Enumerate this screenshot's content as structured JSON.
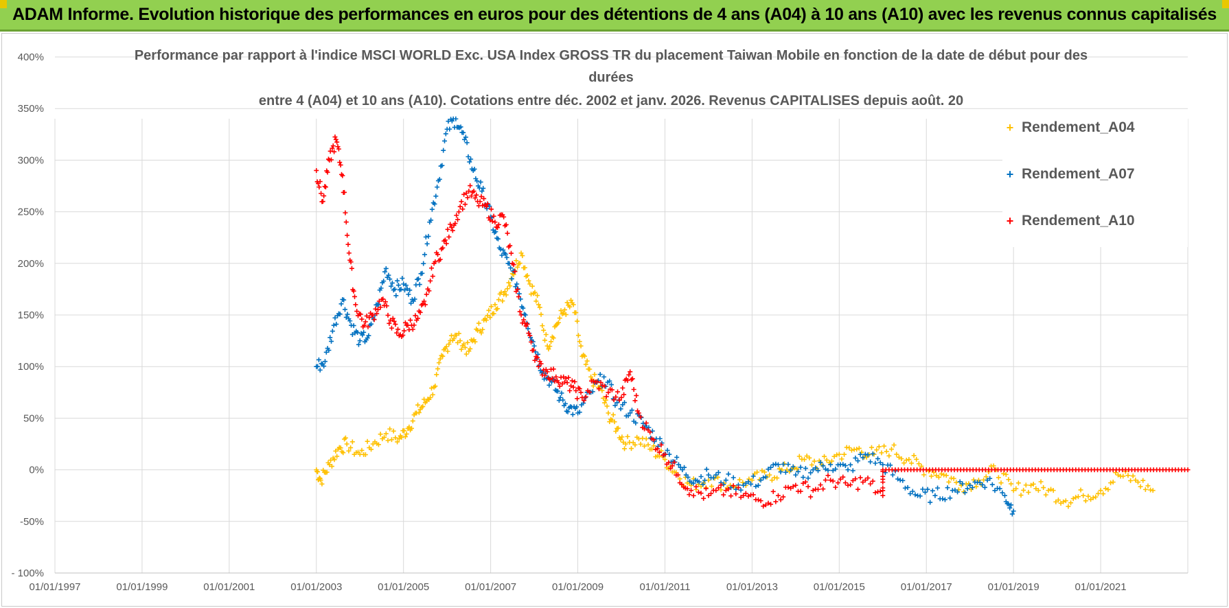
{
  "banner": {
    "title": "ADAM Informe. Evolution historique des performances en euros pour des détentions de 4 ans (A04) à 10 ans (A10) avec les revenus connus capitalisés"
  },
  "colors": {
    "banner_bg": "#92d050",
    "A04": "#ffc000",
    "A07": "#0070c0",
    "A10": "#ff0000",
    "grid": "#d9d9d9",
    "text": "#595959"
  },
  "chart_data": {
    "type": "scatter",
    "title_lines": [
      "Performance par rapport à l'indice MSCI WORLD Exc. USA Index GROSS TR  du placement Taiwan Mobile  en fonction de la date de début pour des",
      "durées",
      "entre 4 (A04) et 10 ans (A10).  Cotations entre déc. 2002 et janv. 2026. Revenus CAPITALISES depuis août. 20"
    ],
    "xlabel": "",
    "ylabel": "",
    "x_tick_labels": [
      "01/01/1997",
      "01/01/1999",
      "01/01/2001",
      "01/01/2003",
      "01/01/2005",
      "01/01/2007",
      "01/01/2009",
      "01/01/2011",
      "01/01/2013",
      "01/01/2015",
      "01/01/2017",
      "01/01/2019",
      "01/01/2021"
    ],
    "x_range_years": [
      1997.0,
      2023.0
    ],
    "y_tick_labels": [
      "- 100%",
      "-50%",
      "0%",
      "50%",
      "100%",
      "150%",
      "200%",
      "250%",
      "300%",
      "350%",
      "400%"
    ],
    "y_range_pct": [
      -100,
      400
    ],
    "grid": true,
    "legend_position": "right",
    "series": [
      {
        "name": "Rendement_A04",
        "marker": "+",
        "points": [
          [
            2003.0,
            0
          ],
          [
            2003.1,
            -10
          ],
          [
            2003.3,
            5
          ],
          [
            2003.5,
            20
          ],
          [
            2003.7,
            25
          ],
          [
            2004.0,
            15
          ],
          [
            2004.3,
            25
          ],
          [
            2004.6,
            35
          ],
          [
            2004.9,
            30
          ],
          [
            2005.1,
            40
          ],
          [
            2005.3,
            55
          ],
          [
            2005.5,
            65
          ],
          [
            2005.7,
            80
          ],
          [
            2005.9,
            110
          ],
          [
            2006.1,
            130
          ],
          [
            2006.3,
            125
          ],
          [
            2006.5,
            115
          ],
          [
            2006.7,
            135
          ],
          [
            2006.9,
            145
          ],
          [
            2007.1,
            160
          ],
          [
            2007.3,
            170
          ],
          [
            2007.5,
            190
          ],
          [
            2007.7,
            210
          ],
          [
            2007.9,
            180
          ],
          [
            2008.1,
            160
          ],
          [
            2008.3,
            120
          ],
          [
            2008.5,
            140
          ],
          [
            2008.7,
            155
          ],
          [
            2008.9,
            160
          ],
          [
            2009.1,
            110
          ],
          [
            2009.3,
            90
          ],
          [
            2009.5,
            80
          ],
          [
            2009.7,
            55
          ],
          [
            2009.9,
            40
          ],
          [
            2010.1,
            25
          ],
          [
            2010.4,
            30
          ],
          [
            2010.7,
            20
          ],
          [
            2011.0,
            10
          ],
          [
            2011.3,
            -5
          ],
          [
            2011.6,
            -15
          ],
          [
            2012.0,
            -10
          ],
          [
            2012.5,
            -15
          ],
          [
            2013.0,
            -10
          ],
          [
            2013.4,
            -5
          ],
          [
            2013.8,
            0
          ],
          [
            2014.2,
            10
          ],
          [
            2014.6,
            5
          ],
          [
            2015.0,
            15
          ],
          [
            2015.4,
            20
          ],
          [
            2015.8,
            15
          ],
          [
            2016.2,
            20
          ],
          [
            2016.6,
            10
          ],
          [
            2017.0,
            0
          ],
          [
            2017.4,
            -5
          ],
          [
            2017.8,
            -15
          ],
          [
            2018.2,
            -10
          ],
          [
            2018.6,
            0
          ],
          [
            2019.0,
            -20
          ],
          [
            2019.4,
            -15
          ],
          [
            2019.8,
            -20
          ],
          [
            2020.2,
            -30
          ],
          [
            2020.6,
            -25
          ],
          [
            2021.0,
            -20
          ],
          [
            2021.4,
            -5
          ],
          [
            2021.8,
            -10
          ],
          [
            2022.2,
            -20
          ]
        ]
      },
      {
        "name": "Rendement_A07",
        "marker": "+",
        "points": [
          [
            2003.0,
            100
          ],
          [
            2003.2,
            105
          ],
          [
            2003.4,
            140
          ],
          [
            2003.6,
            165
          ],
          [
            2003.8,
            140
          ],
          [
            2004.0,
            125
          ],
          [
            2004.2,
            130
          ],
          [
            2004.4,
            160
          ],
          [
            2004.6,
            195
          ],
          [
            2004.8,
            175
          ],
          [
            2005.0,
            180
          ],
          [
            2005.2,
            165
          ],
          [
            2005.4,
            190
          ],
          [
            2005.6,
            240
          ],
          [
            2005.8,
            280
          ],
          [
            2006.0,
            330
          ],
          [
            2006.2,
            340
          ],
          [
            2006.4,
            320
          ],
          [
            2006.6,
            290
          ],
          [
            2006.8,
            270
          ],
          [
            2007.0,
            245
          ],
          [
            2007.2,
            215
          ],
          [
            2007.4,
            200
          ],
          [
            2007.6,
            180
          ],
          [
            2007.8,
            150
          ],
          [
            2008.0,
            120
          ],
          [
            2008.2,
            95
          ],
          [
            2008.4,
            85
          ],
          [
            2008.6,
            70
          ],
          [
            2008.8,
            60
          ],
          [
            2009.0,
            55
          ],
          [
            2009.3,
            75
          ],
          [
            2009.6,
            90
          ],
          [
            2009.9,
            65
          ],
          [
            2010.2,
            55
          ],
          [
            2010.5,
            45
          ],
          [
            2010.8,
            30
          ],
          [
            2011.1,
            15
          ],
          [
            2011.4,
            0
          ],
          [
            2011.7,
            -10
          ],
          [
            2012.0,
            -5
          ],
          [
            2012.4,
            -10
          ],
          [
            2012.8,
            -15
          ],
          [
            2013.2,
            -10
          ],
          [
            2013.6,
            5
          ],
          [
            2014.0,
            -5
          ],
          [
            2014.4,
            0
          ],
          [
            2014.8,
            5
          ],
          [
            2015.2,
            0
          ],
          [
            2015.6,
            15
          ],
          [
            2016.0,
            5
          ],
          [
            2016.4,
            -10
          ],
          [
            2016.8,
            -25
          ],
          [
            2017.2,
            -25
          ],
          [
            2017.6,
            -20
          ],
          [
            2018.0,
            -15
          ],
          [
            2018.4,
            -10
          ],
          [
            2018.8,
            -25
          ],
          [
            2019.0,
            -40
          ]
        ]
      },
      {
        "name": "Rendement_A10",
        "marker": "+",
        "points": [
          [
            2003.0,
            290
          ],
          [
            2003.15,
            260
          ],
          [
            2003.3,
            300
          ],
          [
            2003.45,
            320
          ],
          [
            2003.6,
            285
          ],
          [
            2003.75,
            210
          ],
          [
            2003.9,
            160
          ],
          [
            2004.1,
            140
          ],
          [
            2004.3,
            150
          ],
          [
            2004.5,
            165
          ],
          [
            2004.7,
            145
          ],
          [
            2004.9,
            130
          ],
          [
            2005.1,
            140
          ],
          [
            2005.3,
            145
          ],
          [
            2005.5,
            160
          ],
          [
            2005.7,
            200
          ],
          [
            2005.9,
            215
          ],
          [
            2006.1,
            235
          ],
          [
            2006.3,
            255
          ],
          [
            2006.5,
            270
          ],
          [
            2006.7,
            260
          ],
          [
            2006.9,
            255
          ],
          [
            2007.1,
            240
          ],
          [
            2007.3,
            245
          ],
          [
            2007.5,
            200
          ],
          [
            2007.7,
            150
          ],
          [
            2007.9,
            130
          ],
          [
            2008.1,
            100
          ],
          [
            2008.3,
            95
          ],
          [
            2008.5,
            90
          ],
          [
            2008.7,
            85
          ],
          [
            2008.9,
            80
          ],
          [
            2009.1,
            70
          ],
          [
            2009.4,
            85
          ],
          [
            2009.7,
            75
          ],
          [
            2010.0,
            70
          ],
          [
            2010.2,
            95
          ],
          [
            2010.4,
            55
          ],
          [
            2010.7,
            30
          ],
          [
            2011.0,
            15
          ],
          [
            2011.3,
            -5
          ],
          [
            2011.6,
            -20
          ],
          [
            2012.0,
            -25
          ],
          [
            2012.4,
            -20
          ],
          [
            2012.8,
            -25
          ],
          [
            2013.2,
            -30
          ],
          [
            2013.6,
            -25
          ],
          [
            2014.0,
            -15
          ],
          [
            2014.4,
            -20
          ],
          [
            2014.8,
            -10
          ],
          [
            2015.2,
            -15
          ],
          [
            2015.6,
            -10
          ],
          [
            2016.0,
            -25
          ],
          [
            2016.0,
            0
          ],
          [
            2016.5,
            0
          ],
          [
            2017.0,
            0
          ],
          [
            2017.5,
            0
          ],
          [
            2018.0,
            0
          ],
          [
            2018.5,
            0
          ],
          [
            2019.0,
            0
          ],
          [
            2019.5,
            0
          ],
          [
            2020.0,
            0
          ],
          [
            2020.5,
            0
          ],
          [
            2021.0,
            0
          ],
          [
            2021.5,
            0
          ],
          [
            2022.0,
            0
          ],
          [
            2022.5,
            0
          ],
          [
            2023.0,
            0
          ]
        ]
      }
    ]
  }
}
